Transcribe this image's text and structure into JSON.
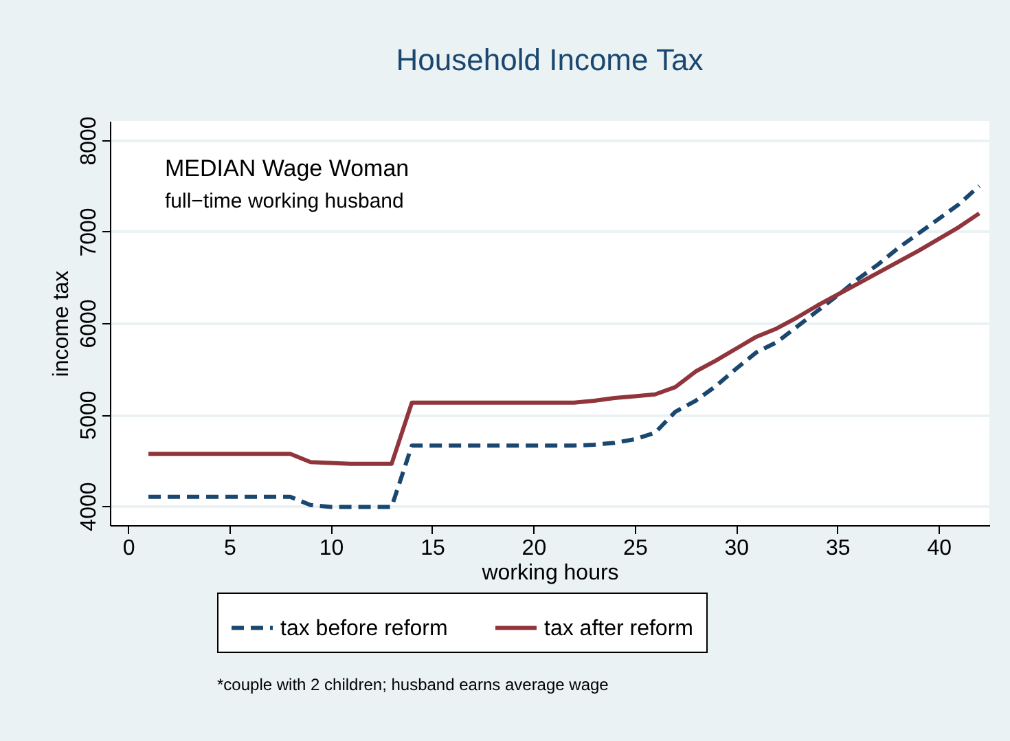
{
  "chart_data": {
    "type": "line",
    "title": "Household Income Tax",
    "xlabel": "working hours",
    "ylabel": "income tax",
    "annotations": [
      "MEDIAN Wage Woman",
      "full−time working husband",
      "*couple with 2 children; husband earns average wage"
    ],
    "x": [
      1,
      2,
      3,
      4,
      5,
      6,
      7,
      8,
      9,
      10,
      11,
      12,
      13,
      14,
      15,
      16,
      17,
      18,
      19,
      20,
      21,
      22,
      23,
      24,
      25,
      26,
      27,
      28,
      29,
      30,
      31,
      32,
      33,
      34,
      35,
      36,
      37,
      38,
      39,
      40,
      41,
      42
    ],
    "series": [
      {
        "name": "tax before reform",
        "color": "#1a476f",
        "line_style": "dashed",
        "values": [
          4100,
          4100,
          4100,
          4100,
          4100,
          4100,
          4100,
          4100,
          4010,
          3990,
          3990,
          3990,
          3990,
          4660,
          4660,
          4660,
          4660,
          4660,
          4660,
          4660,
          4660,
          4660,
          4670,
          4690,
          4730,
          4800,
          5030,
          5150,
          5310,
          5500,
          5680,
          5790,
          5960,
          6130,
          6300,
          6480,
          6640,
          6820,
          6980,
          7140,
          7300,
          7500
        ]
      },
      {
        "name": "tax after reform",
        "color": "#90353b",
        "line_style": "solid",
        "values": [
          4570,
          4570,
          4570,
          4570,
          4570,
          4570,
          4570,
          4570,
          4480,
          4470,
          4460,
          4460,
          4460,
          5130,
          5130,
          5130,
          5130,
          5130,
          5130,
          5130,
          5130,
          5130,
          5150,
          5180,
          5200,
          5220,
          5300,
          5470,
          5590,
          5720,
          5850,
          5940,
          6060,
          6190,
          6310,
          6430,
          6550,
          6670,
          6790,
          6920,
          7050,
          7200
        ]
      }
    ],
    "xlim": [
      -0.9,
      42.5
    ],
    "ylim": [
      3790,
      8210
    ],
    "xticks": [
      0,
      5,
      10,
      15,
      20,
      25,
      30,
      35,
      40
    ],
    "yticks": [
      4000,
      5000,
      6000,
      7000,
      8000
    ],
    "grid": "y",
    "legend": "bottom",
    "marker": "none"
  }
}
